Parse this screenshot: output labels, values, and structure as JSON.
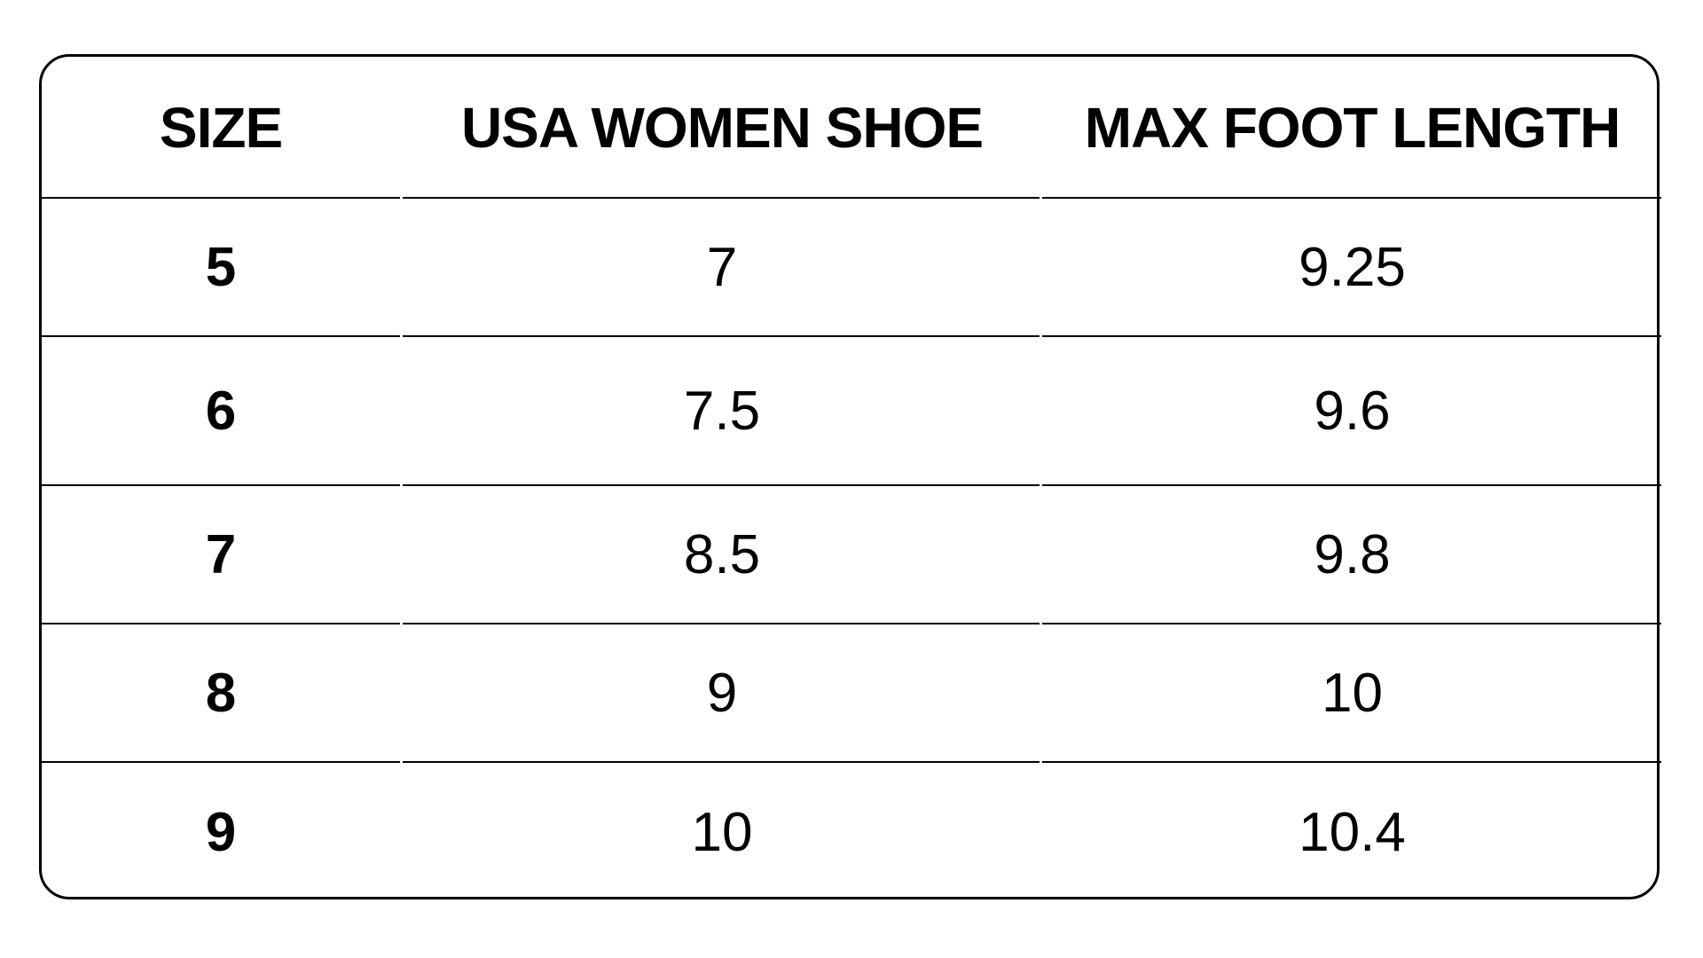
{
  "table": {
    "headers": [
      "SIZE",
      "USA WOMEN SHOE",
      "MAX FOOT LENGTH"
    ],
    "rows": [
      [
        "5",
        "7",
        "9.25"
      ],
      [
        "6",
        "7.5",
        "9.6"
      ],
      [
        "7",
        "8.5",
        "9.8"
      ],
      [
        "8",
        "9",
        "10"
      ],
      [
        "9",
        "10",
        "10.4"
      ]
    ]
  }
}
